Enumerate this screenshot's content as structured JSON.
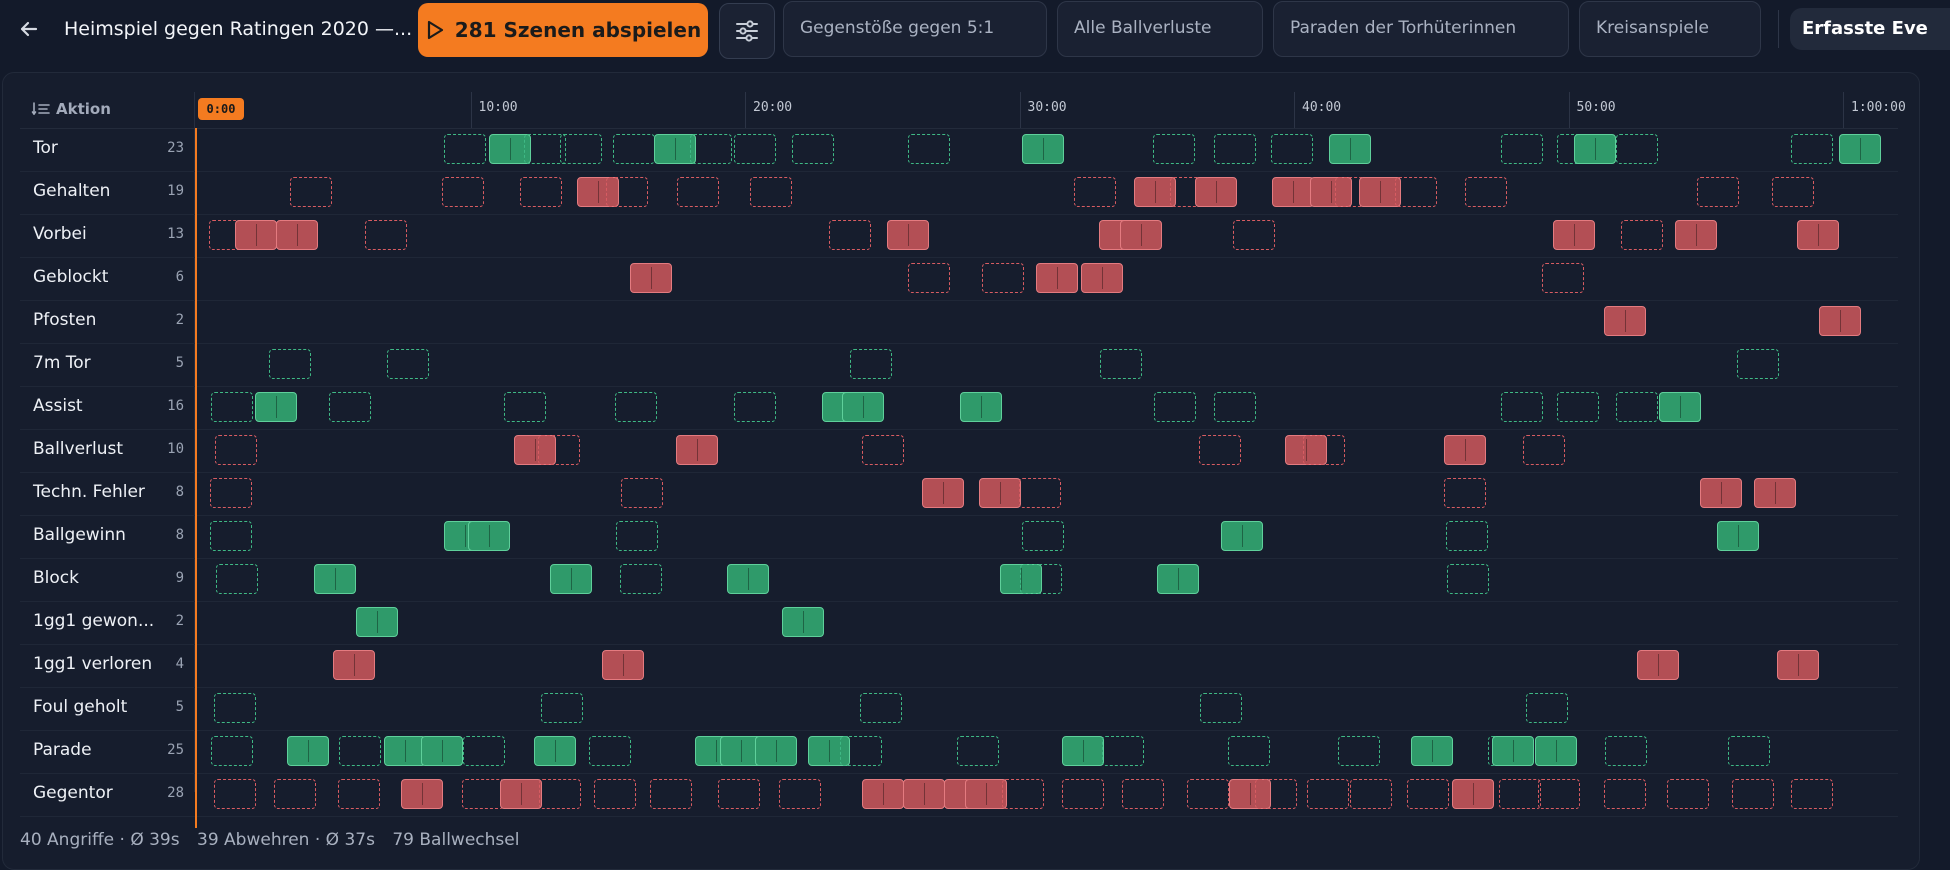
{
  "header": {
    "title": "Heimspiel gegen Ratingen 2020 —...",
    "play_label": "281 Szenen abspielen",
    "chips": [
      "Gegenstöße gegen 5:1",
      "Alle Ballverluste",
      "Paraden der Torhüterinnen",
      "Kreisanspiele"
    ],
    "active_chip": "Erfasste Eve",
    "icons": [
      "arrow-left-icon",
      "play-icon",
      "sliders-icon"
    ]
  },
  "timeline": {
    "column_title": "Aktion",
    "playhead_time": "0:00",
    "ticks": [
      "10:00",
      "20:00",
      "30:00",
      "40:00",
      "50:00",
      "1:00:00"
    ],
    "colors": {
      "success": "#2f9a6a",
      "fail": "#b34f55",
      "accent": "#f47b20"
    },
    "rows": [
      {
        "label": "Tor",
        "count": "23"
      },
      {
        "label": "Gehalten",
        "count": "19"
      },
      {
        "label": "Vorbei",
        "count": "13"
      },
      {
        "label": "Geblockt",
        "count": "6"
      },
      {
        "label": "Pfosten",
        "count": "2"
      },
      {
        "label": "7m Tor",
        "count": "5"
      },
      {
        "label": "Assist",
        "count": "16"
      },
      {
        "label": "Ballverlust",
        "count": "10"
      },
      {
        "label": "Techn. Fehler",
        "count": "8"
      },
      {
        "label": "Ballgewinn",
        "count": "8"
      },
      {
        "label": "Block",
        "count": "9"
      },
      {
        "label": "1gg1 gewon...",
        "count": "2"
      },
      {
        "label": "1gg1 verloren",
        "count": "4"
      },
      {
        "label": "Foul geholt",
        "count": "5"
      },
      {
        "label": "Parade",
        "count": "25"
      },
      {
        "label": "Gegentor",
        "count": "28"
      }
    ]
  },
  "footer": {
    "attacks": "40 Angriffe · Ø 39s",
    "defenses": "39 Abwehren · Ø 37s",
    "rallies": "79 Ballwechsel"
  }
}
